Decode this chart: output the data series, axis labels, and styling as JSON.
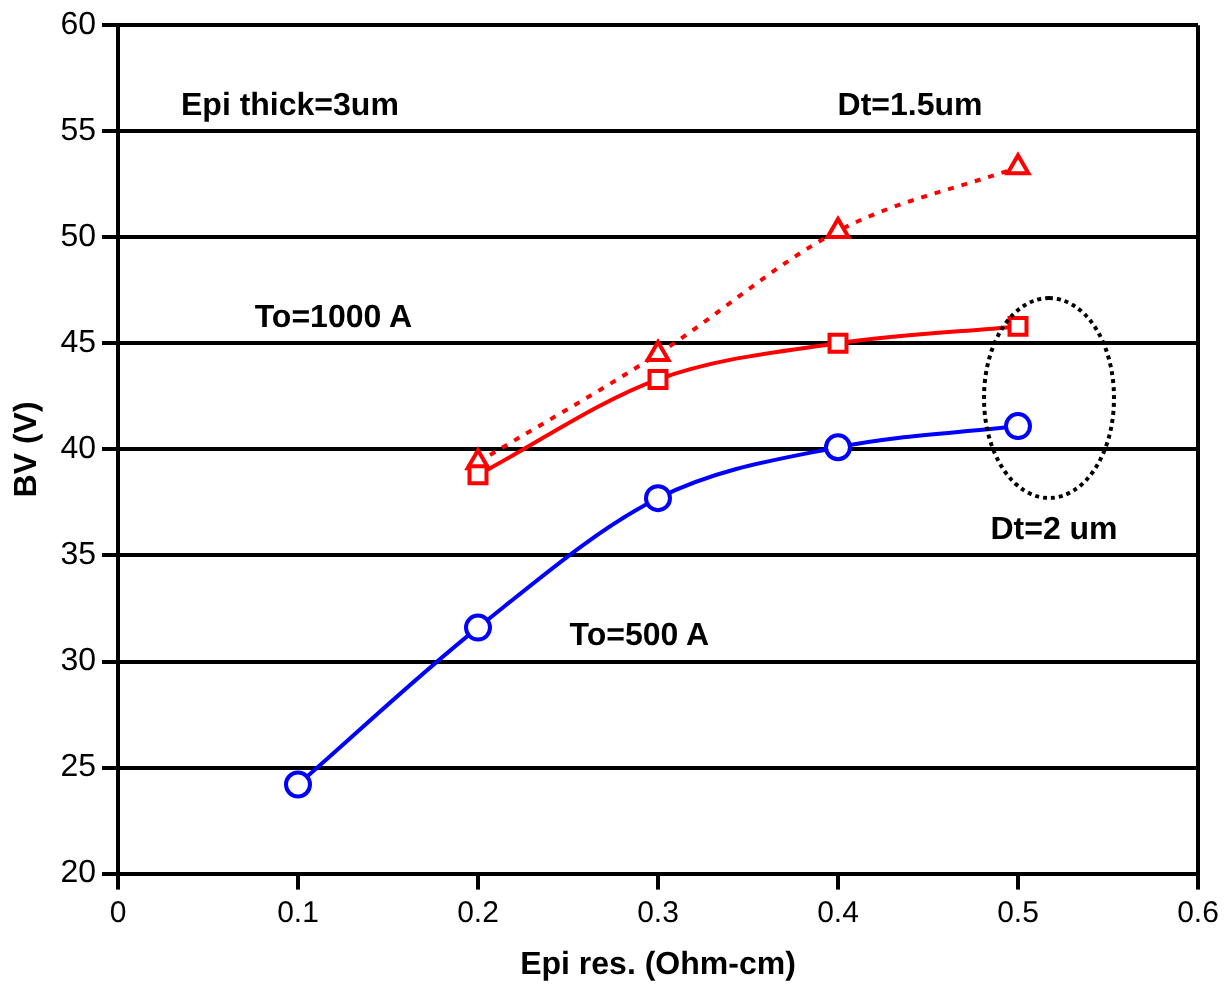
{
  "chart_data": {
    "type": "line",
    "xlabel": "Epi res. (Ohm-cm)",
    "ylabel": "BV (V)",
    "xlim": [
      0,
      0.6
    ],
    "xticks": [
      0,
      0.1,
      0.2,
      0.3,
      0.4,
      0.5,
      0.6
    ],
    "ylim": [
      20,
      60
    ],
    "yticks": [
      20,
      25,
      30,
      35,
      40,
      45,
      50,
      55,
      60
    ],
    "grid": "y",
    "legend": false,
    "series": [
      {
        "color": "#0000ff",
        "marker": "circle",
        "line_style": "solid",
        "x": [
          0.1,
          0.2,
          0.3,
          0.4,
          0.5
        ],
        "values": [
          24.2,
          31.6,
          37.7,
          40.1,
          41.1
        ]
      },
      {
        "color": "#ff0000",
        "marker": "square",
        "line_style": "solid",
        "x": [
          0.2,
          0.3,
          0.4,
          0.5
        ],
        "values": [
          38.8,
          43.3,
          45,
          45.8
        ]
      },
      {
        "color": "#ff0000",
        "marker": "triangle",
        "line_style": "dotted",
        "x": [
          0.2,
          0.3,
          0.4,
          0.5
        ],
        "values": [
          39.4,
          44.5,
          50.3,
          53.3
        ]
      }
    ],
    "annotations": [
      "Epi thick=3um",
      "Dt=1.5um",
      "To=1000 A",
      "To=500 A",
      "Dt=2 um"
    ]
  }
}
